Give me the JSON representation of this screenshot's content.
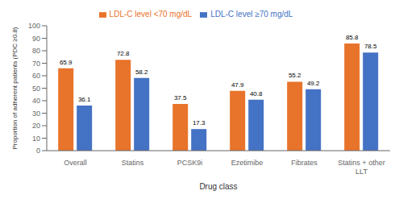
{
  "chart_data": {
    "type": "bar",
    "categories": [
      "Overall",
      "Statins",
      "PCSK9i",
      "Ezetimibe",
      "Fibrates",
      "Statins + other\nLLT"
    ],
    "series": [
      {
        "name": "LDL-C level <70 mg/dL",
        "color": "#E8732A",
        "values": [
          65.9,
          72.8,
          37.5,
          47.9,
          55.2,
          85.8
        ]
      },
      {
        "name": "LDL-C level ≥70 mg/dL",
        "color": "#4472C4",
        "values": [
          36.1,
          58.2,
          17.3,
          40.8,
          49.2,
          78.5
        ]
      }
    ],
    "xlabel": "Drug class",
    "ylabel": "Proportion of adherent patients (PDC ≥0.8)",
    "ylim": [
      0,
      100
    ],
    "yticks": [
      0,
      10,
      20,
      30,
      40,
      50,
      60,
      70,
      80,
      90,
      100
    ],
    "data_labels": true,
    "grid": false,
    "legend": "top"
  }
}
